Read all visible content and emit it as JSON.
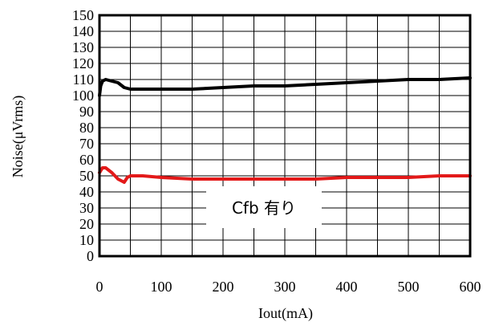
{
  "chart_data": {
    "type": "line",
    "xlabel": "Iout(mA)",
    "ylabel": "Noise(μVrms)",
    "xlim": [
      0,
      600
    ],
    "ylim": [
      0,
      150
    ],
    "x_ticks": [
      0,
      100,
      200,
      300,
      400,
      500,
      600
    ],
    "y_ticks": [
      0,
      10,
      20,
      30,
      40,
      50,
      60,
      70,
      80,
      90,
      100,
      110,
      120,
      130,
      140,
      150
    ],
    "grid": true,
    "annotation": "Cfb 有り",
    "series": [
      {
        "color": "#000000",
        "x": [
          0,
          2,
          5,
          10,
          20,
          30,
          40,
          50,
          60,
          100,
          150,
          200,
          250,
          300,
          350,
          400,
          450,
          500,
          550,
          600
        ],
        "y": [
          100,
          106,
          109,
          110,
          109,
          108,
          105,
          104,
          104,
          104,
          104,
          105,
          106,
          106,
          107,
          108,
          109,
          110,
          110,
          111
        ]
      },
      {
        "color": "#e31919",
        "x": [
          0,
          5,
          10,
          20,
          30,
          40,
          45,
          50,
          60,
          70,
          100,
          150,
          200,
          250,
          300,
          350,
          400,
          450,
          500,
          550,
          600
        ],
        "y": [
          52,
          55,
          55,
          52,
          48,
          46,
          49,
          50,
          50,
          50,
          49,
          48,
          48,
          48,
          48,
          48,
          49,
          49,
          49,
          50,
          50
        ]
      }
    ]
  }
}
